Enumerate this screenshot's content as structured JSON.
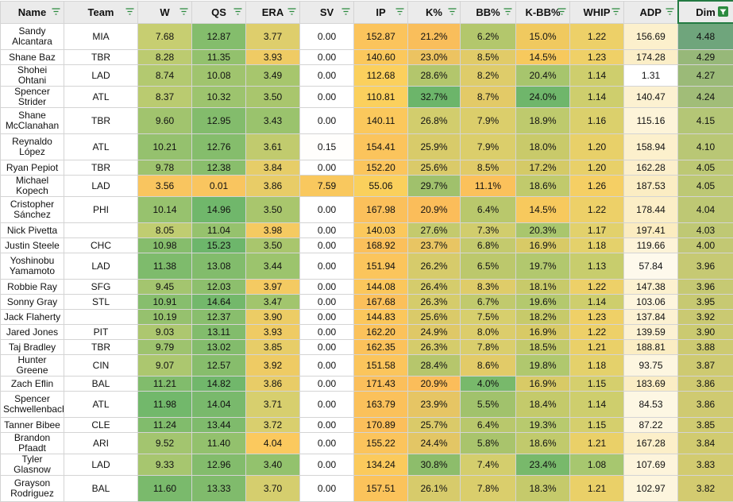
{
  "columns": [
    {
      "label": "Name",
      "key": "name"
    },
    {
      "label": "Team",
      "key": "team"
    },
    {
      "label": "W",
      "key": "w"
    },
    {
      "label": "QS",
      "key": "qs"
    },
    {
      "label": "ERA",
      "key": "era"
    },
    {
      "label": "SV",
      "key": "sv"
    },
    {
      "label": "IP",
      "key": "ip"
    },
    {
      "label": "K%",
      "key": "k"
    },
    {
      "label": "BB%",
      "key": "bb"
    },
    {
      "label": "K-BB%",
      "key": "kbb"
    },
    {
      "label": "WHIP",
      "key": "whip"
    },
    {
      "label": "ADP",
      "key": "adp"
    },
    {
      "label": "Dim",
      "key": "dim"
    }
  ],
  "active_filter_column": "Dim",
  "rows": [
    {
      "name": "Sandy Alcantara",
      "team": "MIA",
      "w": "7.68",
      "qs": "12.87",
      "era": "3.77",
      "sv": "0.00",
      "ip": "152.87",
      "k": "21.2%",
      "bb": "6.2%",
      "kbb": "15.0%",
      "whip": "1.22",
      "adp": "156.69",
      "dim": "4.48",
      "tall": true
    },
    {
      "name": "Shane Baz",
      "team": "TBR",
      "w": "8.28",
      "qs": "11.35",
      "era": "3.93",
      "sv": "0.00",
      "ip": "140.60",
      "k": "23.0%",
      "bb": "8.5%",
      "kbb": "14.5%",
      "whip": "1.23",
      "adp": "174.28",
      "dim": "4.29"
    },
    {
      "name": "Shohei Ohtani",
      "team": "LAD",
      "w": "8.74",
      "qs": "10.08",
      "era": "3.49",
      "sv": "0.00",
      "ip": "112.68",
      "k": "28.6%",
      "bb": "8.2%",
      "kbb": "20.4%",
      "whip": "1.14",
      "adp": "1.31",
      "dim": "4.27"
    },
    {
      "name": "Spencer Strider",
      "team": "ATL",
      "w": "8.37",
      "qs": "10.32",
      "era": "3.50",
      "sv": "0.00",
      "ip": "110.81",
      "k": "32.7%",
      "bb": "8.7%",
      "kbb": "24.0%",
      "whip": "1.14",
      "adp": "140.47",
      "dim": "4.24"
    },
    {
      "name": "Shane McClanahan",
      "team": "TBR",
      "w": "9.60",
      "qs": "12.95",
      "era": "3.43",
      "sv": "0.00",
      "ip": "140.11",
      "k": "26.8%",
      "bb": "7.9%",
      "kbb": "18.9%",
      "whip": "1.16",
      "adp": "115.16",
      "dim": "4.15",
      "tall": true
    },
    {
      "name": "Reynaldo López",
      "team": "ATL",
      "w": "10.21",
      "qs": "12.76",
      "era": "3.61",
      "sv": "0.15",
      "ip": "154.41",
      "k": "25.9%",
      "bb": "7.9%",
      "kbb": "18.0%",
      "whip": "1.20",
      "adp": "158.94",
      "dim": "4.10",
      "tall": true
    },
    {
      "name": "Ryan Pepiot",
      "team": "TBR",
      "w": "9.78",
      "qs": "12.38",
      "era": "3.84",
      "sv": "0.00",
      "ip": "152.20",
      "k": "25.6%",
      "bb": "8.5%",
      "kbb": "17.2%",
      "whip": "1.20",
      "adp": "162.28",
      "dim": "4.05"
    },
    {
      "name": "Michael Kopech",
      "team": "LAD",
      "w": "3.56",
      "qs": "0.01",
      "era": "3.86",
      "sv": "7.59",
      "ip": "55.06",
      "k": "29.7%",
      "bb": "11.1%",
      "kbb": "18.6%",
      "whip": "1.26",
      "adp": "187.53",
      "dim": "4.05"
    },
    {
      "name": "Cristopher Sánchez",
      "team": "PHI",
      "w": "10.14",
      "qs": "14.96",
      "era": "3.50",
      "sv": "0.00",
      "ip": "167.98",
      "k": "20.9%",
      "bb": "6.4%",
      "kbb": "14.5%",
      "whip": "1.22",
      "adp": "178.44",
      "dim": "4.04",
      "tall": true
    },
    {
      "name": "Nick Pivetta",
      "team": "",
      "w": "8.05",
      "qs": "11.04",
      "era": "3.98",
      "sv": "0.00",
      "ip": "140.03",
      "k": "27.6%",
      "bb": "7.3%",
      "kbb": "20.3%",
      "whip": "1.17",
      "adp": "197.41",
      "dim": "4.03"
    },
    {
      "name": "Justin Steele",
      "team": "CHC",
      "w": "10.98",
      "qs": "15.23",
      "era": "3.50",
      "sv": "0.00",
      "ip": "168.92",
      "k": "23.7%",
      "bb": "6.8%",
      "kbb": "16.9%",
      "whip": "1.18",
      "adp": "119.66",
      "dim": "4.00"
    },
    {
      "name": "Yoshinobu Yamamoto",
      "team": "LAD",
      "w": "11.38",
      "qs": "13.08",
      "era": "3.44",
      "sv": "0.00",
      "ip": "151.94",
      "k": "26.2%",
      "bb": "6.5%",
      "kbb": "19.7%",
      "whip": "1.13",
      "adp": "57.84",
      "dim": "3.96",
      "tall": true
    },
    {
      "name": "Robbie Ray",
      "team": "SFG",
      "w": "9.45",
      "qs": "12.03",
      "era": "3.97",
      "sv": "0.00",
      "ip": "144.08",
      "k": "26.4%",
      "bb": "8.3%",
      "kbb": "18.1%",
      "whip": "1.22",
      "adp": "147.38",
      "dim": "3.96"
    },
    {
      "name": "Sonny Gray",
      "team": "STL",
      "w": "10.91",
      "qs": "14.64",
      "era": "3.47",
      "sv": "0.00",
      "ip": "167.68",
      "k": "26.3%",
      "bb": "6.7%",
      "kbb": "19.6%",
      "whip": "1.14",
      "adp": "103.06",
      "dim": "3.95"
    },
    {
      "name": "Jack Flaherty",
      "team": "",
      "w": "10.19",
      "qs": "12.37",
      "era": "3.90",
      "sv": "0.00",
      "ip": "144.83",
      "k": "25.6%",
      "bb": "7.5%",
      "kbb": "18.2%",
      "whip": "1.23",
      "adp": "137.84",
      "dim": "3.92"
    },
    {
      "name": "Jared Jones",
      "team": "PIT",
      "w": "9.03",
      "qs": "13.11",
      "era": "3.93",
      "sv": "0.00",
      "ip": "162.20",
      "k": "24.9%",
      "bb": "8.0%",
      "kbb": "16.9%",
      "whip": "1.22",
      "adp": "139.59",
      "dim": "3.90"
    },
    {
      "name": "Taj Bradley",
      "team": "TBR",
      "w": "9.79",
      "qs": "13.02",
      "era": "3.85",
      "sv": "0.00",
      "ip": "162.35",
      "k": "26.3%",
      "bb": "7.8%",
      "kbb": "18.5%",
      "whip": "1.21",
      "adp": "188.81",
      "dim": "3.88"
    },
    {
      "name": "Hunter Greene",
      "team": "CIN",
      "w": "9.07",
      "qs": "12.57",
      "era": "3.92",
      "sv": "0.00",
      "ip": "151.58",
      "k": "28.4%",
      "bb": "8.6%",
      "kbb": "19.8%",
      "whip": "1.18",
      "adp": "93.75",
      "dim": "3.87"
    },
    {
      "name": "Zach Eflin",
      "team": "BAL",
      "w": "11.21",
      "qs": "14.82",
      "era": "3.86",
      "sv": "0.00",
      "ip": "171.43",
      "k": "20.9%",
      "bb": "4.0%",
      "kbb": "16.9%",
      "whip": "1.15",
      "adp": "183.69",
      "dim": "3.86"
    },
    {
      "name": "Spencer Schwellenbach",
      "team": "ATL",
      "w": "11.98",
      "qs": "14.04",
      "era": "3.71",
      "sv": "0.00",
      "ip": "163.79",
      "k": "23.9%",
      "bb": "5.5%",
      "kbb": "18.4%",
      "whip": "1.14",
      "adp": "84.53",
      "dim": "3.86",
      "tall": true
    },
    {
      "name": "Tanner Bibee",
      "team": "CLE",
      "w": "11.24",
      "qs": "13.44",
      "era": "3.72",
      "sv": "0.00",
      "ip": "170.89",
      "k": "25.7%",
      "bb": "6.4%",
      "kbb": "19.3%",
      "whip": "1.15",
      "adp": "87.22",
      "dim": "3.85"
    },
    {
      "name": "Brandon Pfaadt",
      "team": "ARI",
      "w": "9.52",
      "qs": "11.40",
      "era": "4.04",
      "sv": "0.00",
      "ip": "155.22",
      "k": "24.4%",
      "bb": "5.8%",
      "kbb": "18.6%",
      "whip": "1.21",
      "adp": "167.28",
      "dim": "3.84"
    },
    {
      "name": "Tyler Glasnow",
      "team": "LAD",
      "w": "9.33",
      "qs": "12.96",
      "era": "3.40",
      "sv": "0.00",
      "ip": "134.24",
      "k": "30.8%",
      "bb": "7.4%",
      "kbb": "23.4%",
      "whip": "1.08",
      "adp": "107.69",
      "dim": "3.83"
    },
    {
      "name": "Grayson Rodriguez",
      "team": "BAL",
      "w": "11.60",
      "qs": "13.33",
      "era": "3.70",
      "sv": "0.00",
      "ip": "157.51",
      "k": "26.1%",
      "bb": "7.8%",
      "kbb": "18.3%",
      "whip": "1.21",
      "adp": "102.97",
      "dim": "3.82",
      "tall": true
    }
  ],
  "scales": {
    "w": {
      "min": 3.56,
      "max": 11.98,
      "low": "#f9c55f",
      "mid": "#c6ce71",
      "high": "#72b86b"
    },
    "qs": {
      "min": 0.01,
      "max": 15.23,
      "low": "#f9c55f",
      "mid": "#b8cb6f",
      "high": "#6db66b"
    },
    "era": {
      "min": 3.4,
      "max": 4.04,
      "low": "#93c26d",
      "mid": "#d9cf6e",
      "high": "#fbc95e"
    },
    "sv": {
      "min": 0.0,
      "max": 7.59,
      "low": "#ffffff",
      "mid": "#fde9b9",
      "high": "#f9c85e"
    },
    "ip": {
      "min": 55.06,
      "max": 171.43,
      "low": "#fad05c",
      "mid": "#fbd05d",
      "high": "#fbbf5b"
    },
    "k": {
      "min": 20.9,
      "max": 32.7,
      "low": "#fbbd5a",
      "mid": "#d2cd6d",
      "high": "#6cb56a"
    },
    "bb": {
      "min": 4.0,
      "max": 11.1,
      "low": "#78b96b",
      "mid": "#d8cf6d",
      "high": "#fbc15b"
    },
    "kbb": {
      "min": 14.5,
      "max": 24.0,
      "low": "#f7c95d",
      "mid": "#b9ca6e",
      "high": "#6fb66b"
    },
    "whip": {
      "min": 1.08,
      "max": 1.26,
      "low": "#a7c76f",
      "mid": "#e2d16c",
      "high": "#f5cf64"
    },
    "adp": {
      "min": 1.31,
      "max": 197.41,
      "low": "#ffffff",
      "mid": "#fdf5de",
      "high": "#fbecc0"
    },
    "dim": {
      "min": 3.82,
      "max": 4.48,
      "low": "#d3cb70",
      "mid": "#b4c676",
      "high": "#6fa57c"
    }
  }
}
